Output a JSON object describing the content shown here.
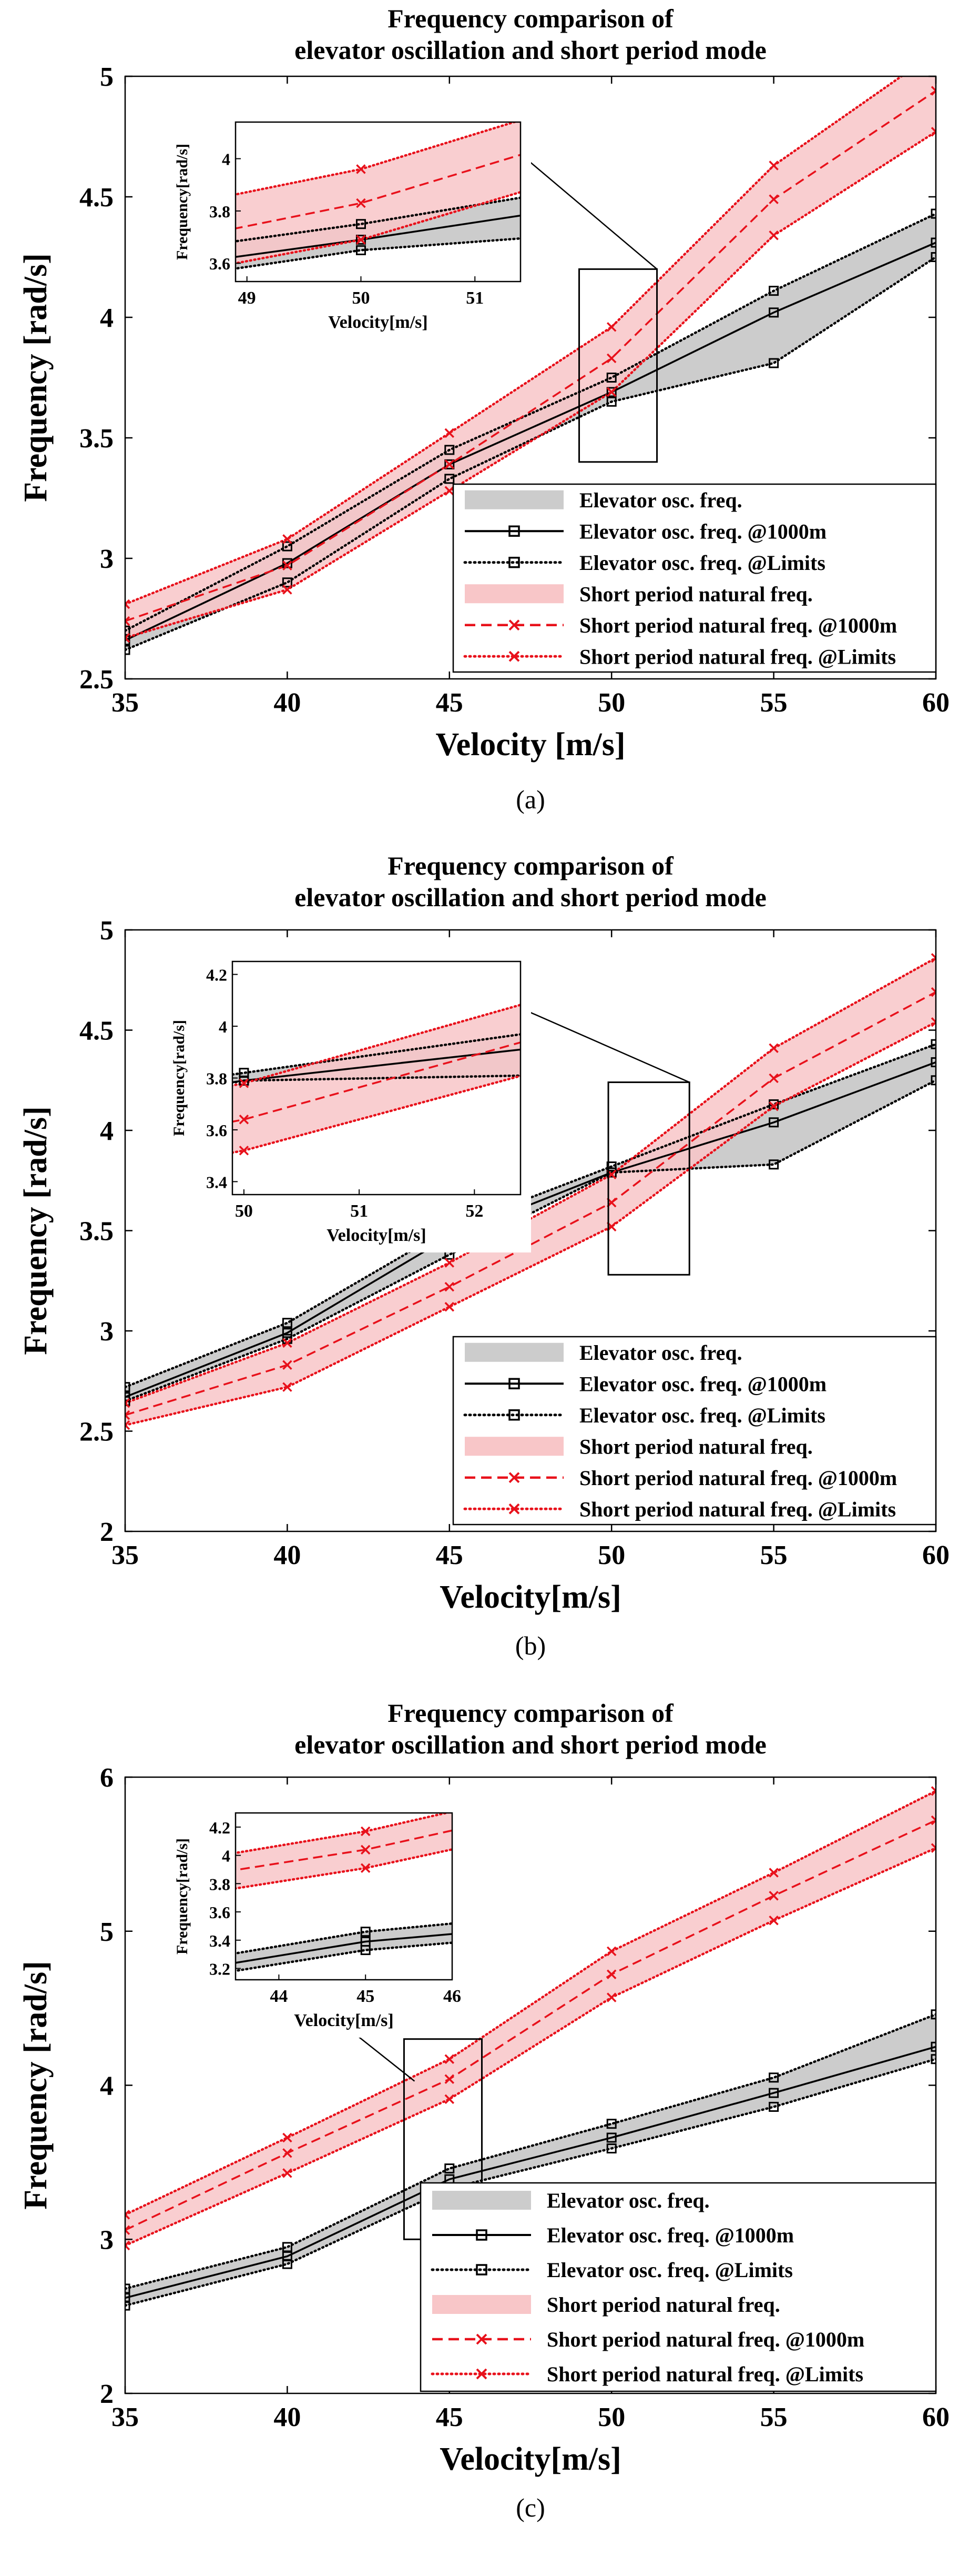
{
  "figure": {
    "caption_labels": [
      "(a)",
      "(b)",
      "(c)"
    ]
  },
  "chart_data": [
    {
      "panel": "a",
      "type": "line",
      "title": [
        "Frequency comparison of",
        "elevator oscillation and short period mode"
      ],
      "xlabel": "Velocity [m/s]",
      "ylabel": "Frequency [rad/s]",
      "xlim": [
        35,
        60
      ],
      "ylim": [
        2.5,
        5
      ],
      "xticks": [
        35,
        40,
        45,
        50,
        55,
        60
      ],
      "yticks": [
        2.5,
        3,
        3.5,
        4,
        4.5,
        5
      ],
      "x": [
        35,
        40,
        45,
        50,
        55,
        60
      ],
      "series": [
        {
          "name": "Elevator osc. freq. @1000m",
          "group": "elevator",
          "role": "nominal",
          "values": [
            2.66,
            2.98,
            3.39,
            3.69,
            4.02,
            4.31
          ]
        },
        {
          "name": "Elevator osc. freq. @Limits (upper)",
          "group": "elevator",
          "role": "upper",
          "values": [
            2.7,
            3.05,
            3.45,
            3.75,
            4.11,
            4.43
          ]
        },
        {
          "name": "Elevator osc. freq. @Limits (lower)",
          "group": "elevator",
          "role": "lower",
          "values": [
            2.62,
            2.9,
            3.33,
            3.65,
            3.81,
            4.25
          ]
        },
        {
          "name": "Short period natural freq. @1000m",
          "group": "short",
          "role": "nominal",
          "values": [
            2.74,
            2.97,
            3.39,
            3.83,
            4.49,
            4.94
          ]
        },
        {
          "name": "Short period natural freq. @Limits (upper)",
          "group": "short",
          "role": "upper",
          "values": [
            2.81,
            3.08,
            3.52,
            3.96,
            4.63,
            5.1
          ]
        },
        {
          "name": "Short period natural freq. @Limits (lower)",
          "group": "short",
          "role": "lower",
          "values": [
            2.67,
            2.87,
            3.28,
            3.69,
            4.34,
            4.77
          ]
        }
      ],
      "legend": {
        "placement": "bottom-right",
        "entries": [
          "Elevator osc. freq.",
          "Elevator osc. freq. @1000m",
          "Elevator osc. freq. @Limits",
          "Short period natural freq.",
          "Short period natural freq. @1000m",
          "Short period natural freq. @Limits"
        ]
      },
      "inset": {
        "xlabel": "Velocity[m/s]",
        "ylabel": "Frequency[rad/s]",
        "xlim": [
          48.9,
          51.4
        ],
        "ylim": [
          3.53,
          4.14
        ],
        "xticks": [
          49,
          50,
          51
        ],
        "yticks": [
          3.6,
          3.8,
          4
        ],
        "zoom_box": {
          "x": [
            49,
            51.4
          ],
          "y": [
            3.4,
            4.2
          ]
        }
      }
    },
    {
      "panel": "b",
      "type": "line",
      "title": [
        "Frequency comparison of",
        "elevator oscillation and short period mode"
      ],
      "xlabel": "Velocity[m/s]",
      "ylabel": "Frequency [rad/s]",
      "xlim": [
        35,
        60
      ],
      "ylim": [
        2,
        5
      ],
      "xticks": [
        35,
        40,
        45,
        50,
        55,
        60
      ],
      "yticks": [
        2,
        2.5,
        3,
        3.5,
        4,
        4.5,
        5
      ],
      "x": [
        35,
        40,
        45,
        50,
        55,
        60
      ],
      "series": [
        {
          "name": "Elevator osc. freq. @1000m",
          "group": "elevator",
          "role": "nominal",
          "values": [
            2.67,
            2.99,
            3.47,
            3.79,
            4.04,
            4.34
          ]
        },
        {
          "name": "Elevator osc. freq. @Limits (upper)",
          "group": "elevator",
          "role": "upper",
          "values": [
            2.72,
            3.04,
            3.51,
            3.82,
            4.13,
            4.43
          ]
        },
        {
          "name": "Elevator osc. freq. @Limits (lower)",
          "group": "elevator",
          "role": "lower",
          "values": [
            2.65,
            2.96,
            3.38,
            3.79,
            3.83,
            4.25
          ]
        },
        {
          "name": "Short period natural freq. @1000m",
          "group": "short",
          "role": "nominal",
          "values": [
            2.58,
            2.83,
            3.22,
            3.64,
            4.26,
            4.69
          ]
        },
        {
          "name": "Short period natural freq. @Limits (upper)",
          "group": "short",
          "role": "upper",
          "values": [
            2.64,
            2.94,
            3.34,
            3.78,
            4.41,
            4.86
          ]
        },
        {
          "name": "Short period natural freq. @Limits (lower)",
          "group": "short",
          "role": "lower",
          "values": [
            2.53,
            2.72,
            3.12,
            3.52,
            4.12,
            4.54
          ]
        }
      ],
      "legend": {
        "placement": "bottom-right",
        "entries": [
          "Elevator osc. freq.",
          "Elevator osc. freq. @1000m",
          "Elevator osc. freq. @Limits",
          "Short period natural freq.",
          "Short period natural freq. @1000m",
          "Short period natural freq. @Limits"
        ]
      },
      "inset": {
        "xlabel": "Velocity[m/s]",
        "ylabel": "Frequency[rad/s]",
        "xlim": [
          49.9,
          52.4
        ],
        "ylim": [
          3.35,
          4.25
        ],
        "xticks": [
          50,
          51,
          52
        ],
        "yticks": [
          3.4,
          3.6,
          3.8,
          4,
          4.2
        ],
        "zoom_box": {
          "x": [
            49.9,
            52.4
          ],
          "y": [
            3.28,
            4.24
          ]
        }
      }
    },
    {
      "panel": "c",
      "type": "line",
      "title": [
        "Frequency comparison of",
        "elevator oscillation and short period mode"
      ],
      "xlabel": "Velocity[m/s]",
      "ylabel": "Frequency [rad/s]",
      "xlim": [
        35,
        60
      ],
      "ylim": [
        2,
        6
      ],
      "xticks": [
        35,
        40,
        45,
        50,
        55,
        60
      ],
      "yticks": [
        2,
        3,
        4,
        5,
        6
      ],
      "x": [
        35,
        40,
        45,
        50,
        55,
        60
      ],
      "series": [
        {
          "name": "Elevator osc. freq. @1000m",
          "group": "elevator",
          "role": "nominal",
          "values": [
            2.62,
            2.89,
            3.39,
            3.66,
            3.95,
            4.25
          ]
        },
        {
          "name": "Elevator osc. freq. @Limits (upper)",
          "group": "elevator",
          "role": "upper",
          "values": [
            2.68,
            2.95,
            3.46,
            3.75,
            4.05,
            4.46
          ]
        },
        {
          "name": "Elevator osc. freq. @Limits (lower)",
          "group": "elevator",
          "role": "lower",
          "values": [
            2.57,
            2.84,
            3.33,
            3.59,
            3.86,
            4.17
          ]
        },
        {
          "name": "Short period natural freq. @1000m",
          "group": "short",
          "role": "nominal",
          "values": [
            3.06,
            3.56,
            4.04,
            4.72,
            5.23,
            5.72
          ]
        },
        {
          "name": "Short period natural freq. @Limits (upper)",
          "group": "short",
          "role": "upper",
          "values": [
            3.16,
            3.66,
            4.17,
            4.87,
            5.38,
            5.91
          ]
        },
        {
          "name": "Short period natural freq. @Limits (lower)",
          "group": "short",
          "role": "lower",
          "values": [
            2.96,
            3.43,
            3.91,
            4.57,
            5.07,
            5.54
          ]
        }
      ],
      "legend": {
        "placement": "bottom-right",
        "entries": [
          "Elevator osc. freq.",
          "Elevator osc. freq. @1000m",
          "Elevator osc. freq. @Limits",
          "Short period natural freq.",
          "Short period natural freq. @1000m",
          "Short period natural freq. @Limits"
        ]
      },
      "inset": {
        "xlabel": "Velocity[m/s]",
        "ylabel": "Frequency[rad/s]",
        "xlim": [
          43.5,
          46
        ],
        "ylim": [
          3.12,
          4.3
        ],
        "xticks": [
          44,
          45,
          46
        ],
        "yticks": [
          3.2,
          3.4,
          3.6,
          3.8,
          4,
          4.2
        ],
        "zoom_box": {
          "x": [
            43.6,
            46
          ],
          "y": [
            3.0,
            4.3
          ]
        }
      }
    }
  ]
}
